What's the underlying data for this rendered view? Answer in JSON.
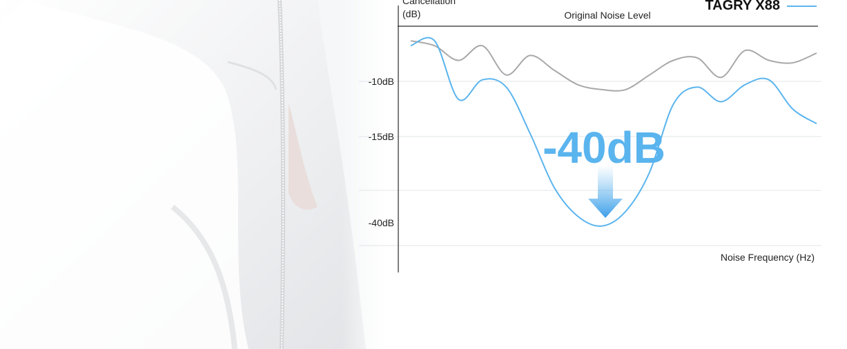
{
  "chart_data": {
    "type": "line",
    "yaxis_title_line1": "Cancellation",
    "yaxis_title_line2": "(dB)",
    "xlabel": "Noise Frequency (Hz)",
    "ytick_labels": [
      "-10dB",
      "-15dB",
      "-40dB"
    ],
    "annotation": "-40dB",
    "series": [
      {
        "name": "Original Noise Level",
        "color": "#a8a8a8",
        "values": [
          -3,
          -4,
          -7,
          -4,
          -10,
          -6,
          -9,
          -12,
          -13,
          -13,
          -10,
          -7,
          -6.5,
          -10.5,
          -5,
          -7,
          -7.5,
          -5.5
        ]
      },
      {
        "name": "TAGRY X88",
        "color": "#5ab4ee",
        "values": [
          -4,
          -3,
          -15,
          -11,
          -12.5,
          -22,
          -33,
          -39,
          -41,
          -38,
          -30,
          -16,
          -12.5,
          -15.5,
          -12,
          -11,
          -17,
          -20
        ]
      }
    ]
  },
  "colors": {
    "accent_blue": "#5ab4ee",
    "gray_line": "#a8a8a8",
    "axis": "#222222"
  }
}
